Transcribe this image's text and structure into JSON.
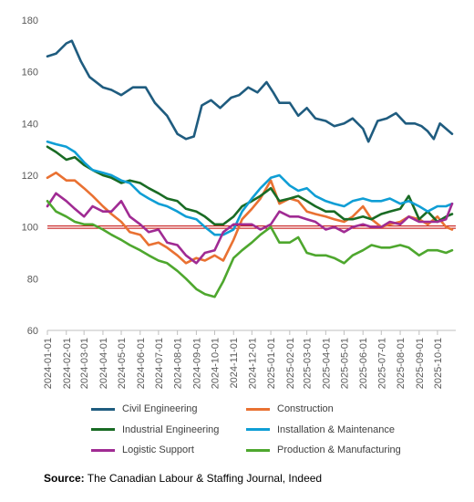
{
  "chart_data": {
    "type": "line",
    "title": "",
    "xlabel": "",
    "ylabel": "",
    "ylim": [
      60,
      180
    ],
    "yticks": [
      60,
      80,
      100,
      120,
      140,
      160,
      180
    ],
    "x_ticks": [
      "2024-01-01",
      "2024-02-01",
      "2024-03-01",
      "2024-04-01",
      "2024-05-01",
      "2024-06-01",
      "2024-07-01",
      "2024-08-01",
      "2024-09-01",
      "2024-10-01",
      "2024-11-01",
      "2024-12-01",
      "2025-01-01",
      "2025-02-01",
      "2025-03-01",
      "2025-04-01",
      "2025-05-01",
      "2025-06-01",
      "2025-07-01",
      "2025-08-01",
      "2025-09-01",
      "2025-10-01"
    ],
    "x_range": [
      "2024-01-01",
      "2025-10-31"
    ],
    "reference_line": 100,
    "grid": false,
    "legend_position": "bottom",
    "series": [
      {
        "name": "Civil Engineering",
        "color": "#1F5C7F",
        "x": [
          "2024-01-01",
          "2024-01-15",
          "2024-02-01",
          "2024-02-10",
          "2024-02-25",
          "2024-03-10",
          "2024-04-01",
          "2024-04-15",
          "2024-05-01",
          "2024-05-20",
          "2024-06-10",
          "2024-06-25",
          "2024-07-15",
          "2024-08-01",
          "2024-08-15",
          "2024-08-28",
          "2024-09-10",
          "2024-09-25",
          "2024-10-10",
          "2024-10-28",
          "2024-11-10",
          "2024-11-25",
          "2024-12-10",
          "2024-12-25",
          "2025-01-05",
          "2025-01-15",
          "2025-02-01",
          "2025-02-15",
          "2025-03-01",
          "2025-03-15",
          "2025-04-01",
          "2025-04-15",
          "2025-05-01",
          "2025-05-15",
          "2025-06-01",
          "2025-06-10",
          "2025-06-25",
          "2025-07-10",
          "2025-07-25",
          "2025-08-10",
          "2025-08-25",
          "2025-09-05",
          "2025-09-15",
          "2025-09-25",
          "2025-10-05",
          "2025-10-15",
          "2025-10-25"
        ],
        "values": [
          166,
          167,
          171,
          172,
          164,
          158,
          154,
          153,
          151,
          154,
          154,
          148,
          143,
          136,
          134,
          135,
          147,
          149,
          146,
          150,
          151,
          154,
          152,
          156,
          152,
          148,
          148,
          143,
          146,
          142,
          141,
          139,
          140,
          142,
          138,
          133,
          141,
          142,
          144,
          140,
          140,
          139,
          137,
          134,
          140,
          138,
          136
        ]
      },
      {
        "name": "Construction",
        "color": "#E97132",
        "x": [
          "2024-01-01",
          "2024-01-15",
          "2024-02-01",
          "2024-02-15",
          "2024-03-01",
          "2024-03-15",
          "2024-04-01",
          "2024-04-15",
          "2024-05-01",
          "2024-05-15",
          "2024-06-01",
          "2024-06-15",
          "2024-07-01",
          "2024-07-15",
          "2024-08-01",
          "2024-08-15",
          "2024-09-01",
          "2024-09-15",
          "2024-10-01",
          "2024-10-15",
          "2024-11-01",
          "2024-11-15",
          "2024-12-01",
          "2024-12-15",
          "2025-01-01",
          "2025-01-15",
          "2025-02-01",
          "2025-02-15",
          "2025-03-01",
          "2025-03-15",
          "2025-04-01",
          "2025-04-15",
          "2025-05-01",
          "2025-05-15",
          "2025-06-01",
          "2025-06-15",
          "2025-07-01",
          "2025-07-15",
          "2025-08-01",
          "2025-08-15",
          "2025-09-01",
          "2025-09-15",
          "2025-10-01",
          "2025-10-15",
          "2025-10-25"
        ],
        "values": [
          119,
          121,
          118,
          118,
          115,
          112,
          108,
          105,
          102,
          98,
          97,
          93,
          94,
          92,
          89,
          86,
          88,
          87,
          89,
          87,
          95,
          103,
          107,
          111,
          118,
          109,
          111,
          110,
          106,
          105,
          104,
          103,
          102,
          104,
          108,
          103,
          100,
          101,
          102,
          104,
          103,
          101,
          104,
          100,
          99
        ]
      },
      {
        "name": "Industrial Engineering",
        "color": "#196B24",
        "x": [
          "2024-01-01",
          "2024-01-15",
          "2024-02-01",
          "2024-02-15",
          "2024-03-01",
          "2024-03-15",
          "2024-04-01",
          "2024-04-15",
          "2024-05-01",
          "2024-05-15",
          "2024-06-01",
          "2024-06-15",
          "2024-07-01",
          "2024-07-15",
          "2024-08-01",
          "2024-08-15",
          "2024-09-01",
          "2024-09-15",
          "2024-10-01",
          "2024-10-15",
          "2024-11-01",
          "2024-11-15",
          "2024-12-01",
          "2024-12-15",
          "2025-01-01",
          "2025-01-15",
          "2025-02-01",
          "2025-02-15",
          "2025-03-01",
          "2025-03-15",
          "2025-04-01",
          "2025-04-15",
          "2025-05-01",
          "2025-05-15",
          "2025-06-01",
          "2025-06-15",
          "2025-07-01",
          "2025-07-15",
          "2025-08-01",
          "2025-08-15",
          "2025-09-01",
          "2025-09-15",
          "2025-10-01",
          "2025-10-15",
          "2025-10-25"
        ],
        "values": [
          131,
          129,
          126,
          127,
          124,
          122,
          120,
          119,
          117,
          118,
          117,
          115,
          113,
          111,
          110,
          107,
          106,
          104,
          101,
          101,
          104,
          108,
          110,
          112,
          115,
          110,
          111,
          112,
          110,
          108,
          106,
          106,
          103,
          103,
          104,
          103,
          105,
          106,
          107,
          112,
          103,
          106,
          102,
          104,
          105
        ]
      },
      {
        "name": "Installation & Maintenance",
        "color": "#0F9ED5",
        "x": [
          "2024-01-01",
          "2024-01-15",
          "2024-02-01",
          "2024-02-15",
          "2024-03-01",
          "2024-03-15",
          "2024-04-01",
          "2024-04-15",
          "2024-05-01",
          "2024-05-15",
          "2024-06-01",
          "2024-06-15",
          "2024-07-01",
          "2024-07-15",
          "2024-08-01",
          "2024-08-15",
          "2024-09-01",
          "2024-09-15",
          "2024-10-01",
          "2024-10-15",
          "2024-11-01",
          "2024-11-15",
          "2024-12-01",
          "2024-12-15",
          "2025-01-01",
          "2025-01-15",
          "2025-02-01",
          "2025-02-15",
          "2025-03-01",
          "2025-03-15",
          "2025-04-01",
          "2025-04-15",
          "2025-05-01",
          "2025-05-15",
          "2025-06-01",
          "2025-06-15",
          "2025-07-01",
          "2025-07-15",
          "2025-08-01",
          "2025-08-15",
          "2025-09-01",
          "2025-09-15",
          "2025-10-01",
          "2025-10-15",
          "2025-10-25"
        ],
        "values": [
          133,
          132,
          131,
          129,
          125,
          122,
          121,
          120,
          118,
          117,
          113,
          111,
          109,
          108,
          106,
          104,
          103,
          100,
          97,
          97,
          99,
          106,
          111,
          115,
          119,
          120,
          116,
          114,
          115,
          112,
          110,
          109,
          108,
          110,
          111,
          110,
          110,
          111,
          109,
          110,
          108,
          106,
          108,
          108,
          109
        ]
      },
      {
        "name": "Logistic Support",
        "color": "#A02B93",
        "x": [
          "2024-01-01",
          "2024-01-15",
          "2024-02-01",
          "2024-02-15",
          "2024-03-01",
          "2024-03-15",
          "2024-04-01",
          "2024-04-15",
          "2024-05-01",
          "2024-05-15",
          "2024-06-01",
          "2024-06-15",
          "2024-07-01",
          "2024-07-15",
          "2024-08-01",
          "2024-08-15",
          "2024-09-01",
          "2024-09-15",
          "2024-10-01",
          "2024-10-15",
          "2024-11-01",
          "2024-11-15",
          "2024-12-01",
          "2024-12-15",
          "2025-01-01",
          "2025-01-15",
          "2025-02-01",
          "2025-02-15",
          "2025-03-01",
          "2025-03-15",
          "2025-04-01",
          "2025-04-15",
          "2025-05-01",
          "2025-05-15",
          "2025-06-01",
          "2025-06-15",
          "2025-07-01",
          "2025-07-15",
          "2025-08-01",
          "2025-08-15",
          "2025-09-01",
          "2025-09-15",
          "2025-10-01",
          "2025-10-15",
          "2025-10-25"
        ],
        "values": [
          108,
          113,
          110,
          107,
          104,
          108,
          106,
          106,
          110,
          104,
          101,
          98,
          99,
          94,
          93,
          89,
          86,
          90,
          91,
          98,
          101,
          101,
          101,
          99,
          101,
          106,
          104,
          104,
          103,
          102,
          99,
          100,
          98,
          100,
          101,
          100,
          100,
          102,
          101,
          104,
          102,
          102,
          102,
          103,
          109
        ]
      },
      {
        "name": "Production & Manufacturing",
        "color": "#4EA72E",
        "x": [
          "2024-01-01",
          "2024-01-15",
          "2024-02-01",
          "2024-02-15",
          "2024-03-01",
          "2024-03-15",
          "2024-04-01",
          "2024-04-15",
          "2024-05-01",
          "2024-05-15",
          "2024-06-01",
          "2024-06-15",
          "2024-07-01",
          "2024-07-15",
          "2024-08-01",
          "2024-08-15",
          "2024-09-01",
          "2024-09-15",
          "2024-10-01",
          "2024-10-15",
          "2024-11-01",
          "2024-11-15",
          "2024-12-01",
          "2024-12-15",
          "2025-01-01",
          "2025-01-15",
          "2025-02-01",
          "2025-02-15",
          "2025-03-01",
          "2025-03-15",
          "2025-04-01",
          "2025-04-15",
          "2025-05-01",
          "2025-05-15",
          "2025-06-01",
          "2025-06-15",
          "2025-07-01",
          "2025-07-15",
          "2025-08-01",
          "2025-08-15",
          "2025-09-01",
          "2025-09-15",
          "2025-10-01",
          "2025-10-15",
          "2025-10-25"
        ],
        "values": [
          110,
          106,
          104,
          102,
          101,
          101,
          99,
          97,
          95,
          93,
          91,
          89,
          87,
          86,
          83,
          80,
          76,
          74,
          73,
          79,
          88,
          91,
          94,
          97,
          100,
          94,
          94,
          96,
          90,
          89,
          89,
          88,
          86,
          89,
          91,
          93,
          92,
          92,
          93,
          92,
          89,
          91,
          91,
          90,
          91
        ]
      }
    ]
  },
  "legend": [
    {
      "label": "Civil Engineering",
      "color": "#1F5C7F"
    },
    {
      "label": "Construction",
      "color": "#E97132"
    },
    {
      "label": "Industrial Engineering",
      "color": "#196B24"
    },
    {
      "label": "Installation & Maintenance",
      "color": "#0F9ED5"
    },
    {
      "label": "Logistic Support",
      "color": "#A02B93"
    },
    {
      "label": "Production & Manufacturing",
      "color": "#4EA72E"
    }
  ],
  "source": {
    "label": "Source:",
    "text": " The Canadian Labour & Staffing Journal, Indeed"
  },
  "colors": {
    "reference_line": "#C00000",
    "axis": "#BFBFBF"
  }
}
